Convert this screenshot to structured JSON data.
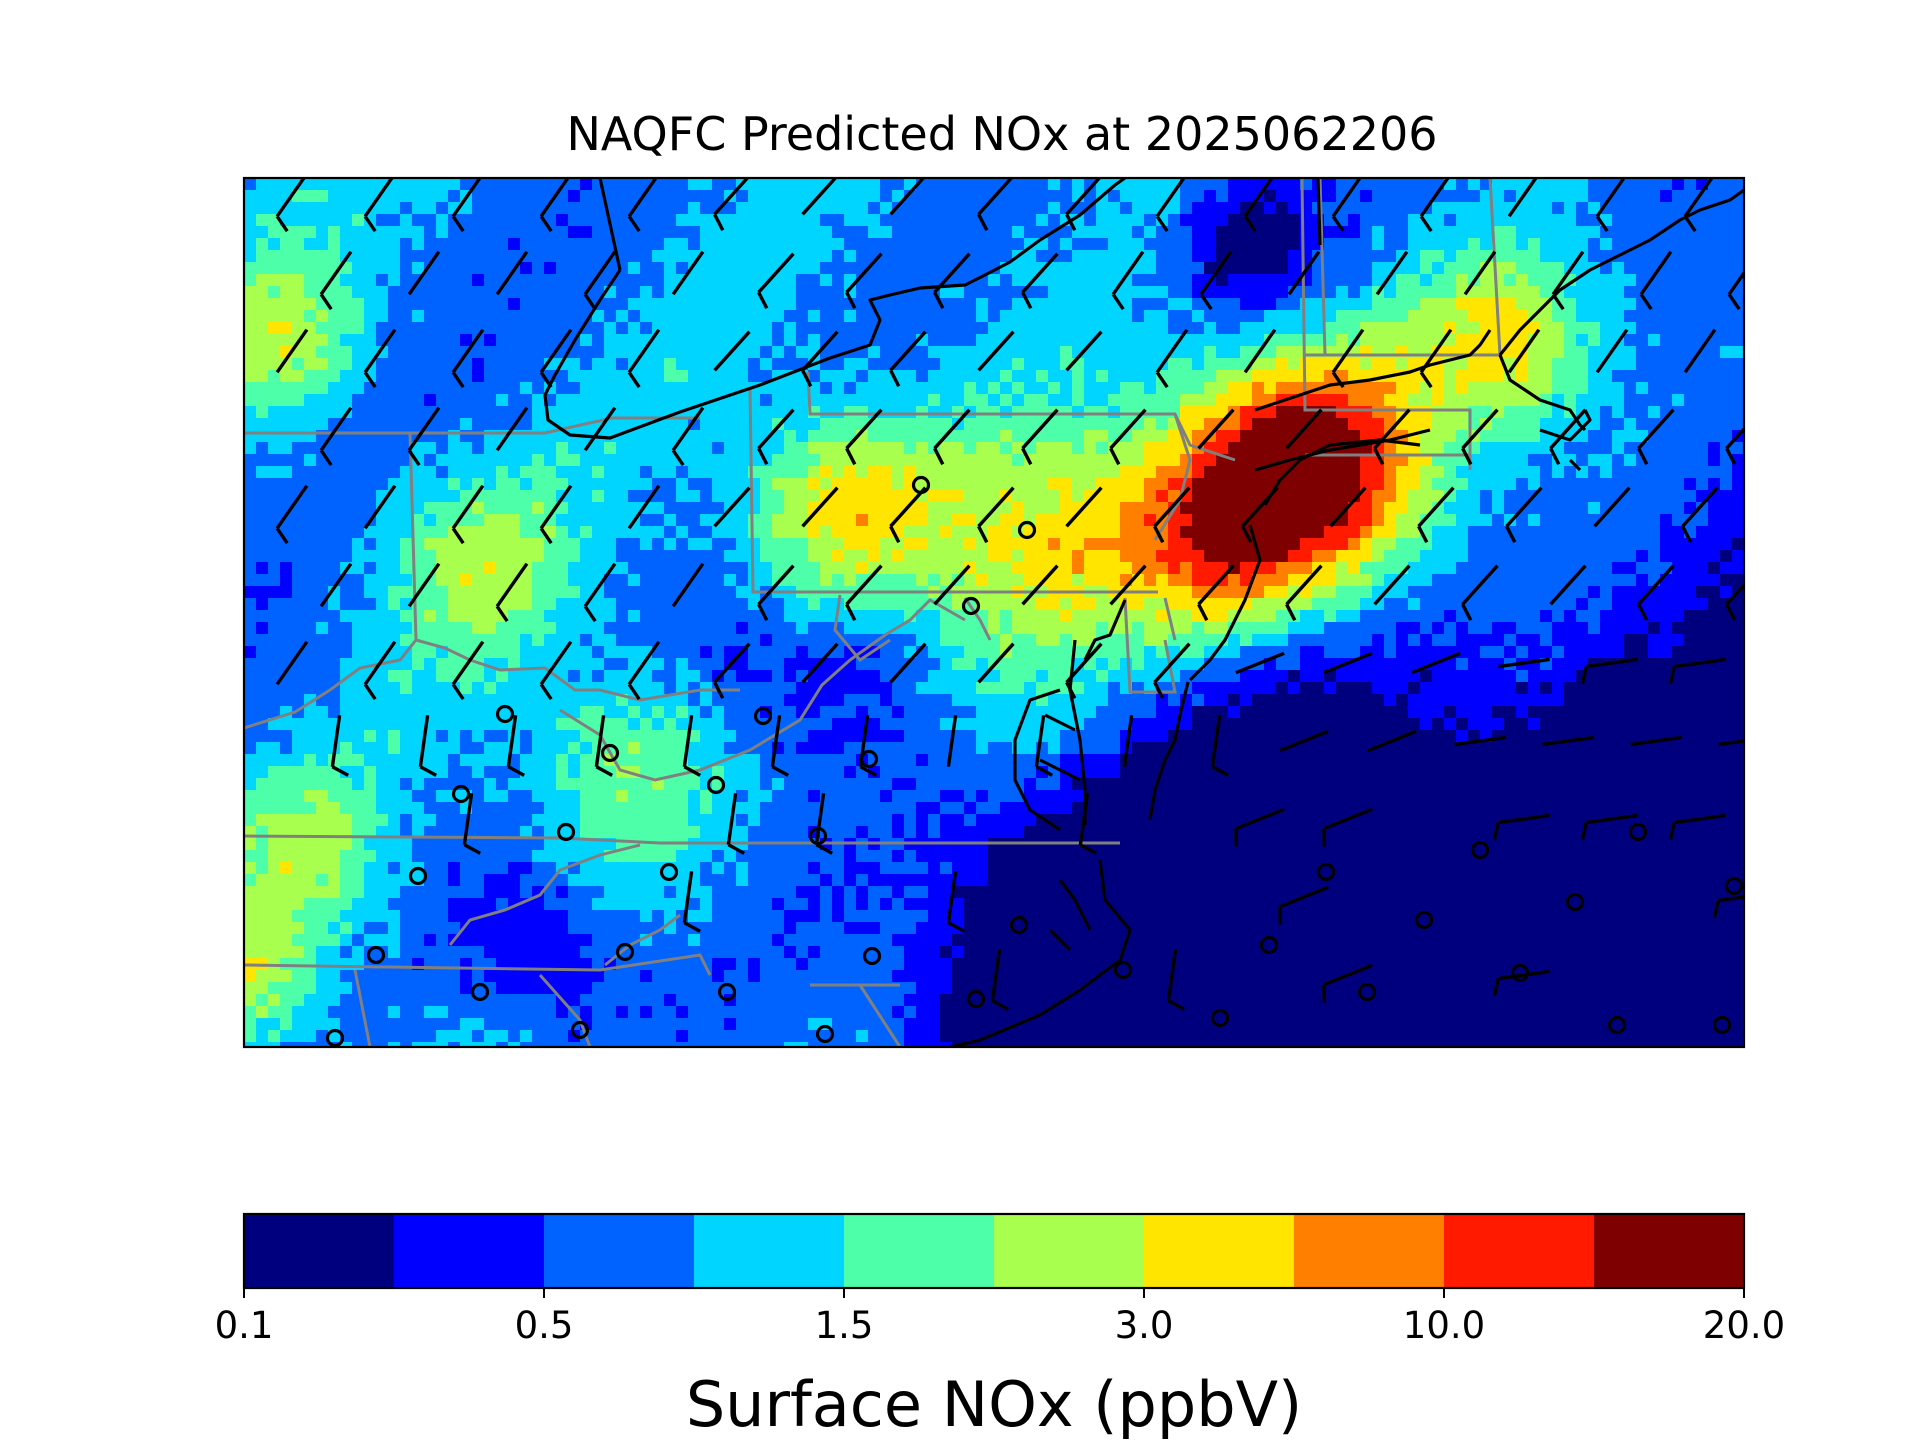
{
  "title": "NAQFC Predicted NOx at 2025062206",
  "colorbar": {
    "label": "Surface NOx (ppbV)",
    "colors": [
      "#00007f",
      "#0000ff",
      "#0063ff",
      "#00d5ff",
      "#4effa9",
      "#a9ff4e",
      "#ffe500",
      "#ff7f00",
      "#ff1a00",
      "#7f0000"
    ],
    "tick_labels": [
      "0.1",
      "0.5",
      "1.5",
      "3.0",
      "10.0",
      "20.0"
    ]
  },
  "chart_data": {
    "type": "heatmap",
    "title": "NAQFC Predicted NOx at 2025062206",
    "variable": "Surface NOx",
    "units": "ppbV",
    "colorbar_ticks": [
      "0.1",
      "0.5",
      "1.5",
      "3.0",
      "10.0",
      "20.0"
    ],
    "overlays": [
      "wind barbs",
      "calm-wind circles",
      "coastlines",
      "state boundaries",
      "country border"
    ]
  }
}
